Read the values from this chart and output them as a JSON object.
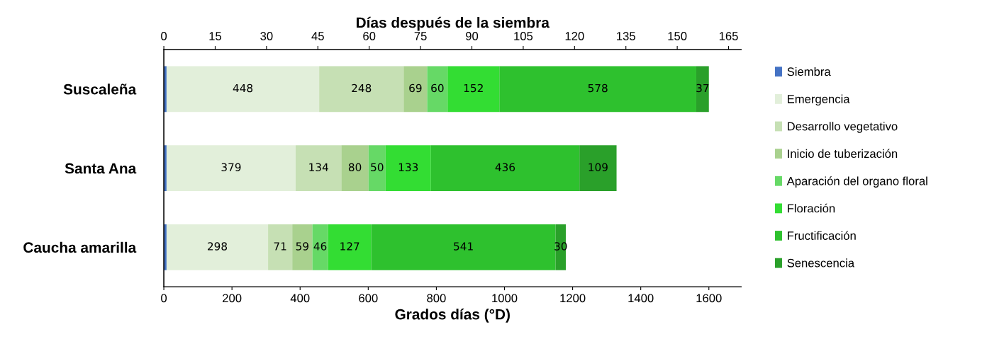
{
  "chart_data": {
    "type": "bar",
    "orientation": "horizontal",
    "stacked": true,
    "categories": [
      "Suscaleña",
      "Santa Ana",
      "Caucha amarilla"
    ],
    "series": [
      {
        "name": "Siembra",
        "color": "#4472c4",
        "values": [
          8,
          8,
          8
        ],
        "value_labels": [
          null,
          null,
          null
        ]
      },
      {
        "name": "Emergencia",
        "color": "#e2efda",
        "values": [
          448,
          379,
          298
        ],
        "value_labels": [
          "448",
          "379",
          "298"
        ]
      },
      {
        "name": "Desarrollo vegetativo",
        "color": "#c6e0b4",
        "values": [
          248,
          134,
          71
        ],
        "value_labels": [
          "248",
          "134",
          "71"
        ]
      },
      {
        "name": "Inicio de tuberización",
        "color": "#a9d18e",
        "values": [
          69,
          80,
          59
        ],
        "value_labels": [
          "69",
          "80",
          "59"
        ]
      },
      {
        "name": "Aparación del organo floral",
        "color": "#66d966",
        "values": [
          60,
          50,
          46
        ],
        "value_labels": [
          "60",
          "50",
          "46"
        ]
      },
      {
        "name": "Floración",
        "color": "#33dd33",
        "values": [
          152,
          133,
          127
        ],
        "value_labels": [
          "152",
          "133",
          "127"
        ]
      },
      {
        "name": "Fructificación",
        "color": "#2ec12e",
        "values": [
          578,
          436,
          541
        ],
        "value_labels": [
          "578",
          "436",
          "541"
        ]
      },
      {
        "name": "Senescencia",
        "color": "#2aa02a",
        "values": [
          37,
          109,
          30
        ],
        "value_labels": [
          "37",
          "109",
          "30"
        ]
      }
    ],
    "xlabel": "Grados días (°D)",
    "xlim": [
      0,
      1695
    ],
    "xticks": [
      0,
      200,
      400,
      600,
      800,
      1000,
      1200,
      1400,
      1600
    ],
    "x2label": "Días después de la siembra",
    "x2lim": [
      0,
      168.7
    ],
    "x2ticks": [
      0,
      15,
      30,
      45,
      60,
      75,
      90,
      105,
      120,
      135,
      150,
      165
    ],
    "legend": "right",
    "grid": false
  }
}
